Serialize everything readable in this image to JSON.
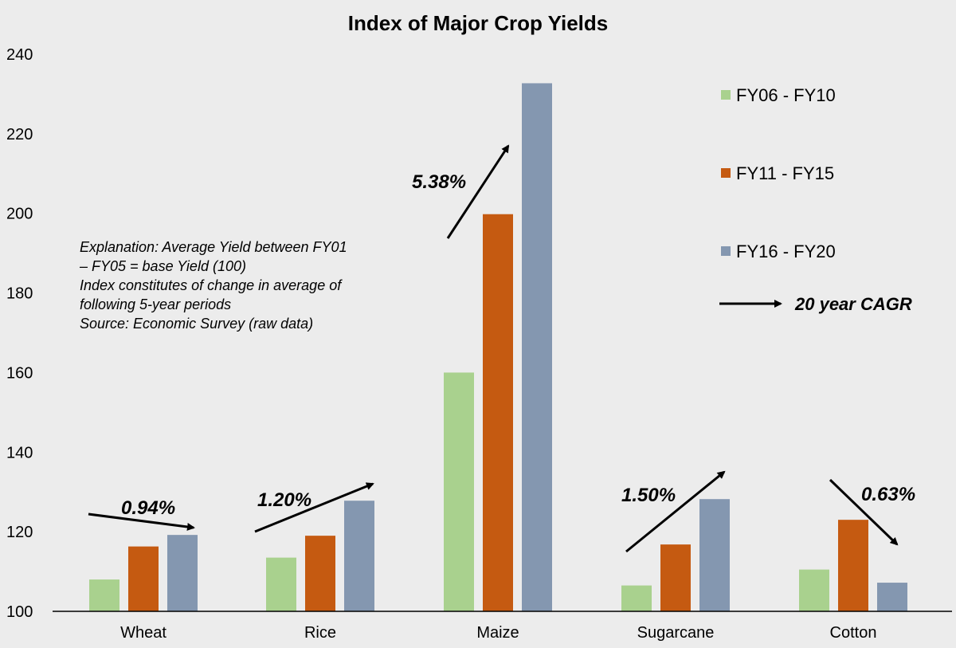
{
  "chart_data": {
    "type": "bar",
    "title": "Index of Major Crop Yields",
    "categories": [
      "Wheat",
      "Rice",
      "Maize",
      "Sugarcane",
      "Cotton"
    ],
    "series": [
      {
        "name": "FY06 - FY10",
        "color": "#a9d18e",
        "values": [
          108,
          113.5,
          160,
          106.5,
          110.5
        ]
      },
      {
        "name": "FY11 - FY15",
        "color": "#c55a11",
        "values": [
          116.3,
          119,
          199.8,
          116.8,
          123
        ]
      },
      {
        "name": "FY16 - FY20",
        "color": "#8497b0",
        "values": [
          119.2,
          127.8,
          232.7,
          128.2,
          107.2
        ]
      }
    ],
    "ylim": [
      100,
      240
    ],
    "yticks": [
      "100",
      "120",
      "140",
      "160",
      "180",
      "200",
      "220",
      "240"
    ],
    "grid": false,
    "legend_position": "right",
    "cagr": {
      "legend_label": "20 year CAGR",
      "labels": [
        "0.94%",
        "1.20%",
        "5.38%",
        "1.50%",
        "0.63%"
      ]
    },
    "explanation": {
      "line1": "Explanation: Average Yield between FY01\n– FY05 = base Yield (100)",
      "line2": "Index constitutes of change in average of\nfollowing 5-year periods",
      "line3": "Source: Economic Survey (raw data)"
    }
  }
}
